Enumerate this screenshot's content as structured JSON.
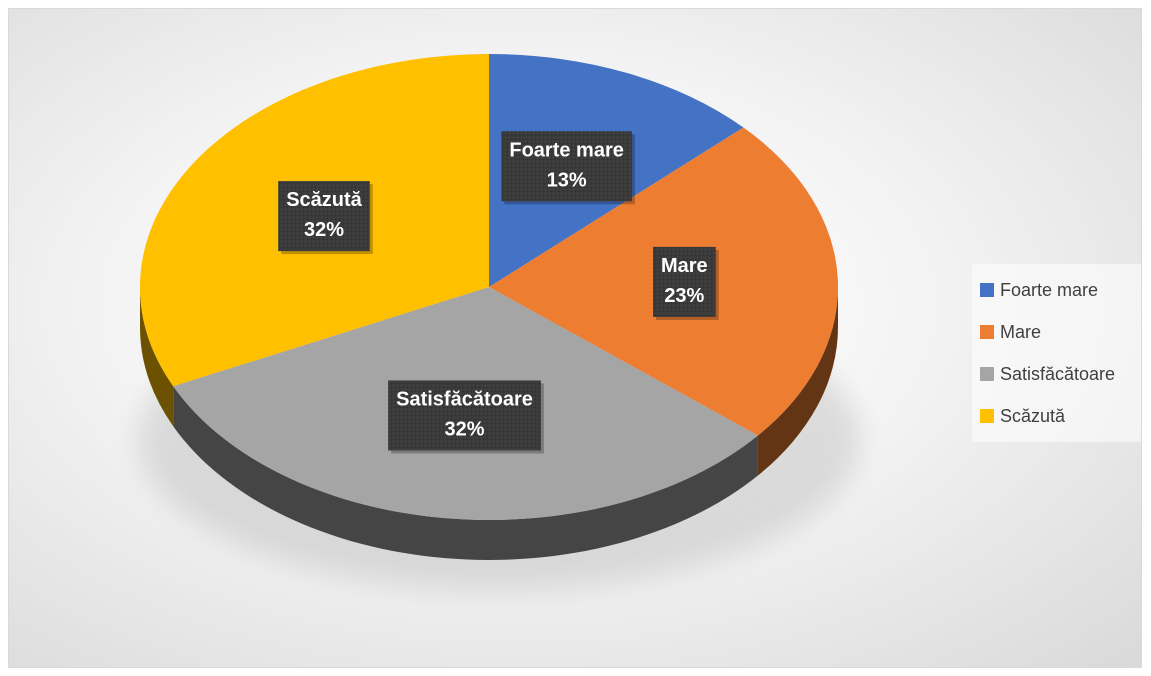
{
  "chart_data": {
    "type": "pie",
    "title": "",
    "categories": [
      "Foarte mare",
      "Mare",
      "Satisfăcătoare",
      "Scăzută"
    ],
    "values": [
      13,
      23,
      32,
      32
    ],
    "value_labels": [
      "13%",
      "23%",
      "32%",
      "32%"
    ],
    "colors": [
      "#4472C4",
      "#ED7D31",
      "#A5A5A5",
      "#FFC000"
    ],
    "style": "3d",
    "legend_position": "right"
  }
}
